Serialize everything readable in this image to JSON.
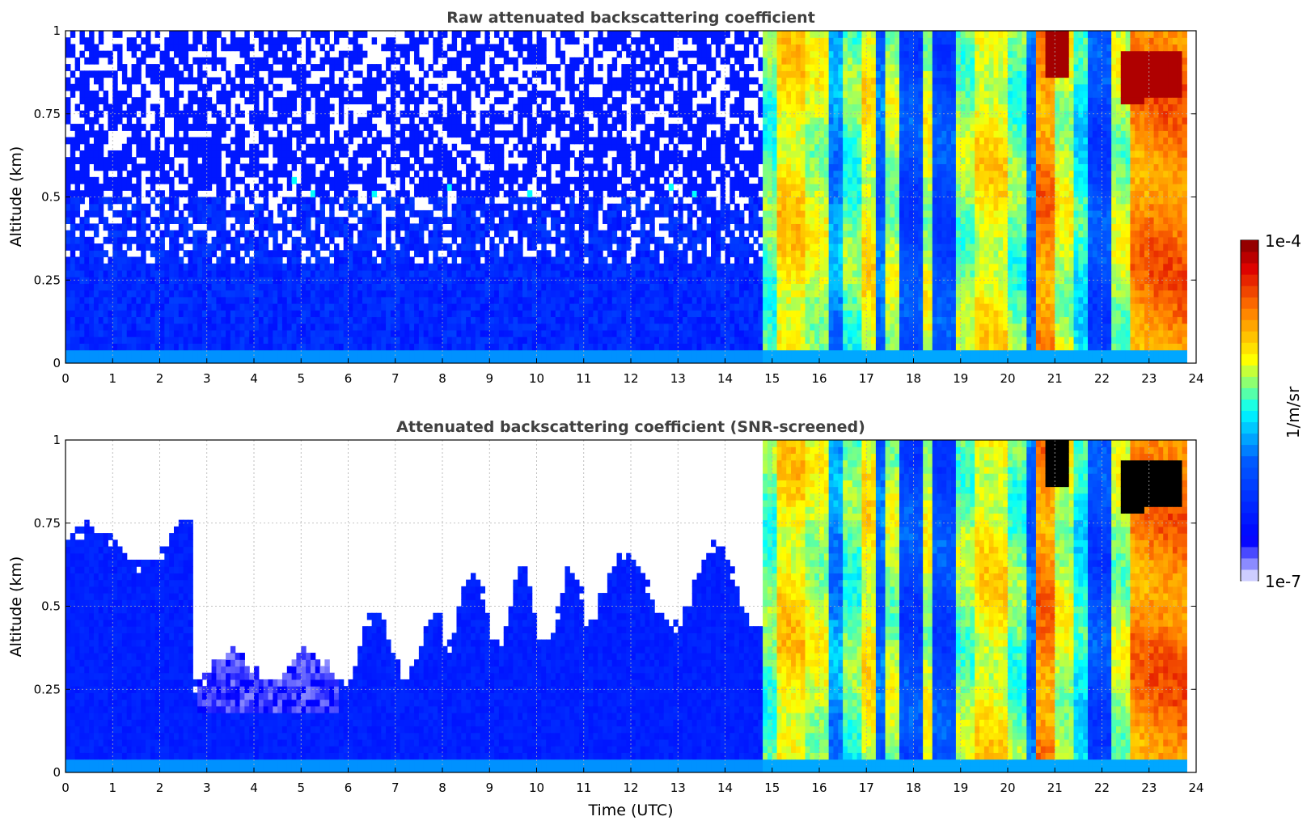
{
  "colors": {
    "jet_stops": [
      "#eeeeff",
      "#0000ff",
      "#0000ff",
      "#00ffff",
      "#ffff00",
      "#ff6600",
      "#8b0000"
    ],
    "grid": "#b0b0b0",
    "title": "#404040"
  },
  "colorbar": {
    "max_label": "1e-4",
    "min_label": "1e-7",
    "unit_label": "1/m/sr",
    "scale": "log",
    "range": [
      1e-07,
      0.0001
    ]
  },
  "chart_data": [
    {
      "type": "heatmap",
      "title": "Raw attenuated backscattering coefficient",
      "xlabel": "",
      "ylabel": "Altitude (km)",
      "xlim": [
        0,
        24
      ],
      "ylim": [
        0,
        1
      ],
      "x_ticks": [
        "0",
        "1",
        "2",
        "3",
        "4",
        "5",
        "6",
        "7",
        "8",
        "9",
        "10",
        "11",
        "12",
        "13",
        "14",
        "15",
        "16",
        "17",
        "18",
        "19",
        "20",
        "21",
        "22",
        "23",
        "24"
      ],
      "y_ticks": [
        "0",
        "0.25",
        "0.5",
        "0.75",
        "1"
      ],
      "grid": true,
      "screened": false
    },
    {
      "type": "heatmap",
      "title": "Attenuated backscattering coefficient (SNR-screened)",
      "xlabel": "Time (UTC)",
      "ylabel": "Altitude (km)",
      "xlim": [
        0,
        24
      ],
      "ylim": [
        0,
        1
      ],
      "x_ticks": [
        "0",
        "1",
        "2",
        "3",
        "4",
        "5",
        "6",
        "7",
        "8",
        "9",
        "10",
        "11",
        "12",
        "13",
        "14",
        "15",
        "16",
        "17",
        "18",
        "19",
        "20",
        "21",
        "22",
        "23",
        "24"
      ],
      "y_ticks": [
        "0",
        "0.25",
        "0.5",
        "0.75",
        "1"
      ],
      "grid": true,
      "screened": true
    }
  ]
}
